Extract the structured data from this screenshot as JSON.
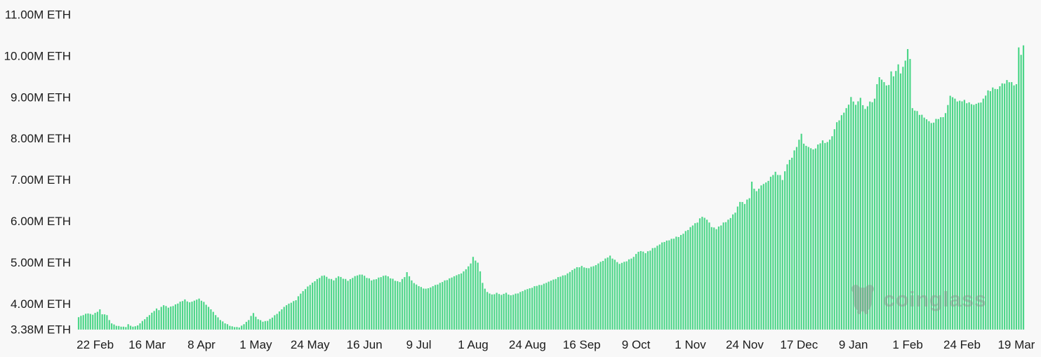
{
  "app": {
    "background_color": "#f8f8f8",
    "axis_text_color": "#1b1b1b"
  },
  "watermark": {
    "text": "coinglass",
    "color": "#8b8b8b",
    "icon": "coinglass-hamster-logo"
  },
  "chart_data": {
    "type": "bar",
    "unit": "M ETH",
    "bar_color": "#4dd689",
    "grid": false,
    "legend": false,
    "ylim": [
      3.38,
      11.0
    ],
    "y_ticks": [
      {
        "label": "11.00M ETH",
        "value": 11.0
      },
      {
        "label": "10.00M ETH",
        "value": 10.0
      },
      {
        "label": "9.00M ETH",
        "value": 9.0
      },
      {
        "label": "8.00M ETH",
        "value": 8.0
      },
      {
        "label": "7.00M ETH",
        "value": 7.0
      },
      {
        "label": "6.00M ETH",
        "value": 6.0
      },
      {
        "label": "5.00M ETH",
        "value": 5.0
      },
      {
        "label": "4.00M ETH",
        "value": 4.0
      },
      {
        "label": "3.38M ETH",
        "value": 3.38
      }
    ],
    "x_ticks": [
      {
        "label": "22 Feb",
        "day": 7
      },
      {
        "label": "16 Mar",
        "day": 29
      },
      {
        "label": "8 Apr",
        "day": 52
      },
      {
        "label": "1 May",
        "day": 75
      },
      {
        "label": "24 May",
        "day": 98
      },
      {
        "label": "16 Jun",
        "day": 121
      },
      {
        "label": "9 Jul",
        "day": 144
      },
      {
        "label": "1 Aug",
        "day": 167
      },
      {
        "label": "24 Aug",
        "day": 190
      },
      {
        "label": "16 Sep",
        "day": 213
      },
      {
        "label": "9 Oct",
        "day": 236
      },
      {
        "label": "1 Nov",
        "day": 259
      },
      {
        "label": "24 Nov",
        "day": 282
      },
      {
        "label": "17 Dec",
        "day": 305
      },
      {
        "label": "9 Jan",
        "day": 328
      },
      {
        "label": "1 Feb",
        "day": 351
      },
      {
        "label": "24 Feb",
        "day": 374
      },
      {
        "label": "19 Mar",
        "day": 397
      }
    ],
    "n_points": 401,
    "points_format": "[day_index_from_first_bar, staked_eth_millions]",
    "points": [
      [
        0,
        3.67
      ],
      [
        2,
        3.72
      ],
      [
        4,
        3.76
      ],
      [
        6,
        3.73
      ],
      [
        8,
        3.8
      ],
      [
        9,
        3.86
      ],
      [
        10,
        3.74
      ],
      [
        12,
        3.72
      ],
      [
        13,
        3.6
      ],
      [
        14,
        3.52
      ],
      [
        16,
        3.46
      ],
      [
        18,
        3.44
      ],
      [
        20,
        3.43
      ],
      [
        21,
        3.5
      ],
      [
        23,
        3.44
      ],
      [
        25,
        3.47
      ],
      [
        26,
        3.52
      ],
      [
        28,
        3.62
      ],
      [
        30,
        3.72
      ],
      [
        32,
        3.82
      ],
      [
        33,
        3.88
      ],
      [
        34,
        3.84
      ],
      [
        35,
        3.92
      ],
      [
        36,
        3.96
      ],
      [
        38,
        3.9
      ],
      [
        40,
        3.94
      ],
      [
        42,
        4.0
      ],
      [
        44,
        4.06
      ],
      [
        45,
        4.1
      ],
      [
        47,
        4.03
      ],
      [
        49,
        4.07
      ],
      [
        51,
        4.12
      ],
      [
        53,
        4.04
      ],
      [
        54,
        3.97
      ],
      [
        56,
        3.86
      ],
      [
        58,
        3.72
      ],
      [
        60,
        3.6
      ],
      [
        62,
        3.52
      ],
      [
        64,
        3.46
      ],
      [
        66,
        3.43
      ],
      [
        68,
        3.42
      ],
      [
        70,
        3.5
      ],
      [
        72,
        3.6
      ],
      [
        73,
        3.7
      ],
      [
        74,
        3.77
      ],
      [
        75,
        3.68
      ],
      [
        76,
        3.62
      ],
      [
        78,
        3.56
      ],
      [
        80,
        3.58
      ],
      [
        82,
        3.66
      ],
      [
        84,
        3.75
      ],
      [
        86,
        3.86
      ],
      [
        88,
        3.96
      ],
      [
        90,
        4.02
      ],
      [
        92,
        4.08
      ],
      [
        94,
        4.24
      ],
      [
        96,
        4.35
      ],
      [
        98,
        4.45
      ],
      [
        100,
        4.54
      ],
      [
        102,
        4.62
      ],
      [
        104,
        4.68
      ],
      [
        106,
        4.6
      ],
      [
        108,
        4.56
      ],
      [
        110,
        4.66
      ],
      [
        112,
        4.6
      ],
      [
        114,
        4.55
      ],
      [
        116,
        4.62
      ],
      [
        118,
        4.68
      ],
      [
        120,
        4.7
      ],
      [
        122,
        4.62
      ],
      [
        124,
        4.56
      ],
      [
        126,
        4.59
      ],
      [
        128,
        4.64
      ],
      [
        130,
        4.68
      ],
      [
        132,
        4.61
      ],
      [
        134,
        4.55
      ],
      [
        136,
        4.52
      ],
      [
        138,
        4.64
      ],
      [
        139,
        4.76
      ],
      [
        140,
        4.66
      ],
      [
        141,
        4.56
      ],
      [
        143,
        4.46
      ],
      [
        145,
        4.4
      ],
      [
        147,
        4.36
      ],
      [
        149,
        4.39
      ],
      [
        151,
        4.45
      ],
      [
        153,
        4.5
      ],
      [
        155,
        4.56
      ],
      [
        157,
        4.61
      ],
      [
        159,
        4.66
      ],
      [
        161,
        4.71
      ],
      [
        163,
        4.78
      ],
      [
        165,
        4.9
      ],
      [
        166,
        4.97
      ],
      [
        167,
        5.13
      ],
      [
        168,
        5.04
      ],
      [
        169,
        4.99
      ],
      [
        170,
        4.78
      ],
      [
        171,
        4.5
      ],
      [
        172,
        4.36
      ],
      [
        173,
        4.28
      ],
      [
        175,
        4.22
      ],
      [
        177,
        4.26
      ],
      [
        179,
        4.21
      ],
      [
        181,
        4.26
      ],
      [
        183,
        4.2
      ],
      [
        185,
        4.24
      ],
      [
        187,
        4.28
      ],
      [
        189,
        4.33
      ],
      [
        191,
        4.37
      ],
      [
        193,
        4.42
      ],
      [
        195,
        4.45
      ],
      [
        197,
        4.48
      ],
      [
        199,
        4.53
      ],
      [
        201,
        4.58
      ],
      [
        203,
        4.64
      ],
      [
        205,
        4.68
      ],
      [
        207,
        4.73
      ],
      [
        209,
        4.81
      ],
      [
        211,
        4.88
      ],
      [
        213,
        4.91
      ],
      [
        215,
        4.86
      ],
      [
        217,
        4.89
      ],
      [
        219,
        4.93
      ],
      [
        221,
        5.01
      ],
      [
        223,
        5.09
      ],
      [
        225,
        5.16
      ],
      [
        227,
        5.06
      ],
      [
        229,
        4.96
      ],
      [
        231,
        5.01
      ],
      [
        233,
        5.07
      ],
      [
        235,
        5.13
      ],
      [
        236,
        5.2
      ],
      [
        238,
        5.27
      ],
      [
        240,
        5.22
      ],
      [
        242,
        5.28
      ],
      [
        244,
        5.35
      ],
      [
        246,
        5.43
      ],
      [
        248,
        5.49
      ],
      [
        250,
        5.53
      ],
      [
        252,
        5.57
      ],
      [
        254,
        5.61
      ],
      [
        256,
        5.69
      ],
      [
        258,
        5.78
      ],
      [
        260,
        5.89
      ],
      [
        262,
        5.96
      ],
      [
        264,
        6.1
      ],
      [
        266,
        6.03
      ],
      [
        268,
        5.85
      ],
      [
        270,
        5.8
      ],
      [
        272,
        5.89
      ],
      [
        274,
        5.97
      ],
      [
        276,
        6.07
      ],
      [
        278,
        6.2
      ],
      [
        280,
        6.46
      ],
      [
        282,
        6.41
      ],
      [
        284,
        6.55
      ],
      [
        285,
        6.95
      ],
      [
        286,
        6.78
      ],
      [
        287,
        6.72
      ],
      [
        289,
        6.86
      ],
      [
        291,
        6.93
      ],
      [
        293,
        7.07
      ],
      [
        295,
        7.19
      ],
      [
        297,
        7.11
      ],
      [
        298,
        6.99
      ],
      [
        300,
        7.37
      ],
      [
        302,
        7.53
      ],
      [
        304,
        7.79
      ],
      [
        306,
        8.11
      ],
      [
        307,
        7.87
      ],
      [
        309,
        7.79
      ],
      [
        311,
        7.73
      ],
      [
        313,
        7.85
      ],
      [
        315,
        7.95
      ],
      [
        317,
        7.91
      ],
      [
        319,
        8.05
      ],
      [
        321,
        8.39
      ],
      [
        323,
        8.56
      ],
      [
        325,
        8.73
      ],
      [
        327,
        9.0
      ],
      [
        329,
        8.81
      ],
      [
        331,
        8.98
      ],
      [
        333,
        8.71
      ],
      [
        335,
        8.89
      ],
      [
        337,
        8.96
      ],
      [
        338,
        9.31
      ],
      [
        339,
        9.48
      ],
      [
        341,
        9.36
      ],
      [
        343,
        9.29
      ],
      [
        344,
        9.62
      ],
      [
        345,
        9.5
      ],
      [
        346,
        9.63
      ],
      [
        347,
        9.79
      ],
      [
        348,
        9.57
      ],
      [
        349,
        9.73
      ],
      [
        350,
        9.88
      ],
      [
        351,
        10.16
      ],
      [
        352,
        9.92
      ],
      [
        353,
        8.73
      ],
      [
        355,
        8.66
      ],
      [
        357,
        8.57
      ],
      [
        359,
        8.46
      ],
      [
        361,
        8.37
      ],
      [
        363,
        8.47
      ],
      [
        365,
        8.51
      ],
      [
        367,
        8.61
      ],
      [
        369,
        9.03
      ],
      [
        371,
        8.96
      ],
      [
        373,
        8.91
      ],
      [
        375,
        8.93
      ],
      [
        377,
        8.87
      ],
      [
        379,
        8.81
      ],
      [
        381,
        8.86
      ],
      [
        383,
        8.96
      ],
      [
        385,
        9.16
      ],
      [
        387,
        9.23
      ],
      [
        389,
        9.19
      ],
      [
        391,
        9.33
      ],
      [
        393,
        9.41
      ],
      [
        395,
        9.36
      ],
      [
        397,
        9.31
      ],
      [
        398,
        10.2
      ],
      [
        399,
        10.02
      ],
      [
        400,
        10.25
      ]
    ]
  }
}
